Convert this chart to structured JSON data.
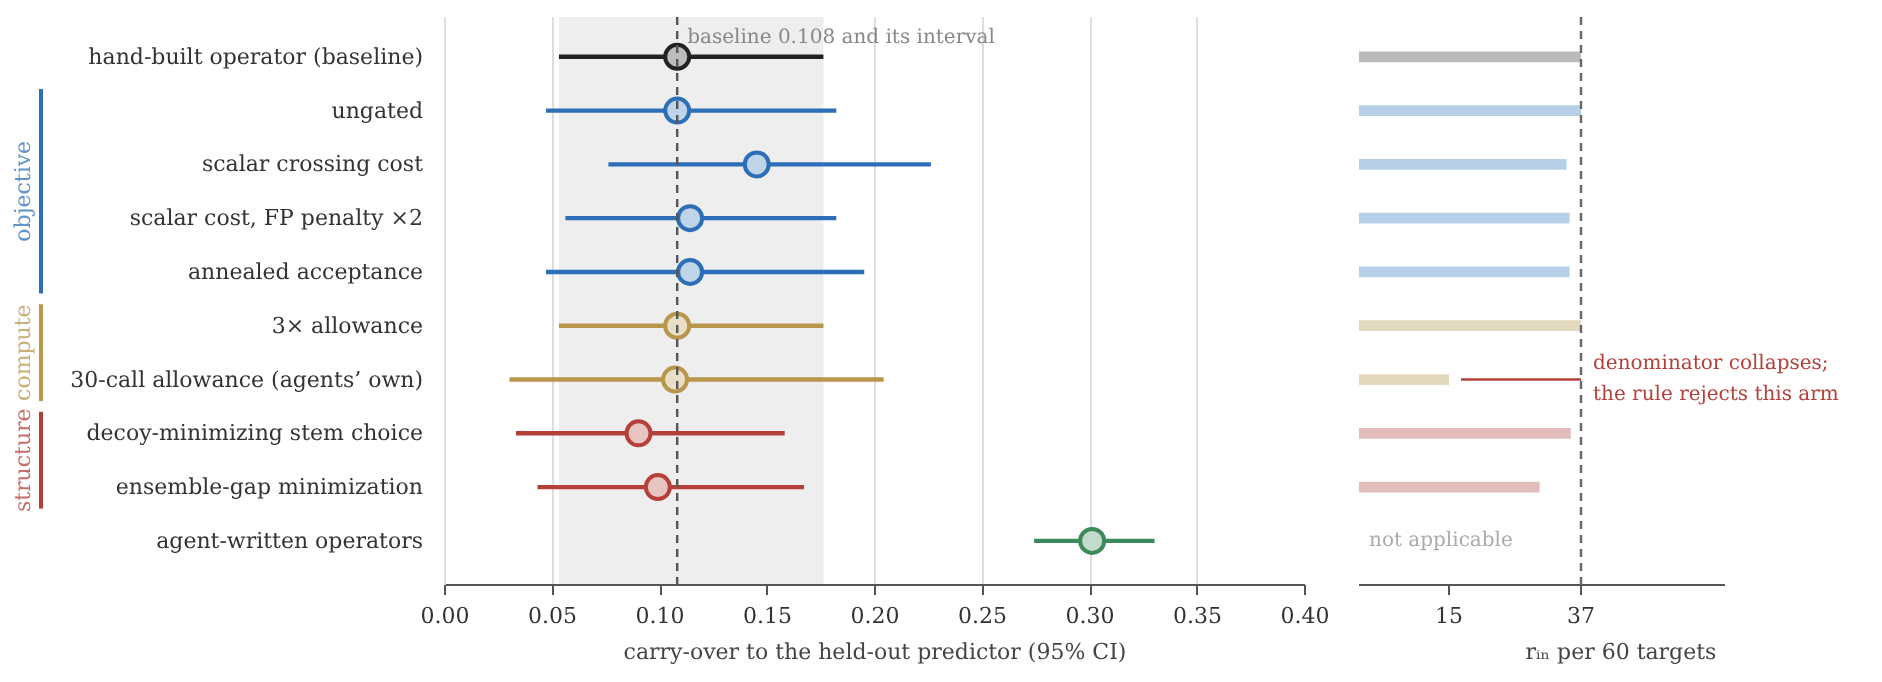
{
  "chart_data": [
    {
      "type": "scatter",
      "orientation": "horizontal",
      "categories": [
        "hand-built operator (baseline)",
        "ungated",
        "scalar crossing cost",
        "scalar cost, FP penalty ×2",
        "annealed acceptance",
        "3× allowance",
        "30-call allowance (agents’ own)",
        "decoy-minimizing stem choice",
        "ensemble-gap minimization",
        "agent-written operators"
      ],
      "values": [
        0.108,
        0.108,
        0.145,
        0.114,
        0.114,
        0.108,
        0.107,
        0.09,
        0.099,
        0.301
      ],
      "errors": [
        [
          0.053,
          0.176
        ],
        [
          0.047,
          0.182
        ],
        [
          0.076,
          0.226
        ],
        [
          0.056,
          0.182
        ],
        [
          0.047,
          0.195
        ],
        [
          0.053,
          0.176
        ],
        [
          0.03,
          0.204
        ],
        [
          0.033,
          0.158
        ],
        [
          0.043,
          0.167
        ],
        [
          0.274,
          0.33
        ]
      ],
      "colors": [
        "#222222",
        "#2c6fb7",
        "#2c6fb7",
        "#2c6fb7",
        "#2c6fb7",
        "#b8964a",
        "#b8964a",
        "#b5403a",
        "#b5403a",
        "#3a8a5a"
      ],
      "marker": "circle",
      "xlabel": "carry-over to the held-out predictor (95% CI)",
      "xlim": [
        0,
        0.4
      ],
      "xticks": [
        {
          "value": 0,
          "label": "0.00"
        },
        {
          "value": 0.05,
          "label": "0.05"
        },
        {
          "value": 0.1,
          "label": "0.10"
        },
        {
          "value": 0.15,
          "label": "0.15"
        },
        {
          "value": 0.2,
          "label": "0.20"
        },
        {
          "value": 0.25,
          "label": "0.25"
        },
        {
          "value": 0.3,
          "label": "0.30"
        },
        {
          "value": 0.35,
          "label": "0.35"
        },
        {
          "value": 0.4,
          "label": "0.40"
        }
      ],
      "grid": "x",
      "ref_lines": [
        {
          "axis": "x",
          "value": 0.108,
          "label": "baseline 0.108 and its interval",
          "color": "#555555",
          "line_style": "dashed"
        }
      ],
      "bands": [
        {
          "axis": "x",
          "from": 0.053,
          "to": 0.176,
          "color": "#eeeeee"
        }
      ],
      "annotations": [
        "objective",
        "compute",
        "structure"
      ]
    },
    {
      "type": "bar",
      "orientation": "horizontal",
      "categories": [
        "hand-built operator (baseline)",
        "ungated",
        "scalar crossing cost",
        "scalar cost, FP penalty ×2",
        "annealed acceptance",
        "3× allowance",
        "30-call allowance (agents’ own)",
        "decoy-minimizing stem choice",
        "ensemble-gap minimization",
        "agent-written operators"
      ],
      "series": [
        {
          "type": "bar",
          "values": [
            37,
            37,
            34.6,
            35.1,
            35.1,
            37,
            15,
            35.3,
            30.1,
            null
          ],
          "colors": [
            "#bbbbbb",
            "#b8cfe8",
            "#b8cfe8",
            "#b8cfe8",
            "#b8cfe8",
            "#e3d9bf",
            "#e3d9bf",
            "#e3bcbc",
            "#e3bcbc",
            "#cccccc"
          ]
        }
      ],
      "xlabel": "rᵢₙ per 60 targets",
      "xlim": [
        0,
        61
      ],
      "xticks": [
        15,
        37
      ],
      "tick_labels": "x",
      "ref_lines": [
        {
          "axis": "x",
          "value": 37,
          "color": "#666666",
          "line_style": "dashed"
        }
      ],
      "annotations": [
        {
          "text": "denominator collapses;\nthe rule rejects this arm",
          "x": 37,
          "y": "30-call allowance (agents’ own)"
        },
        "not applicable"
      ]
    }
  ]
}
